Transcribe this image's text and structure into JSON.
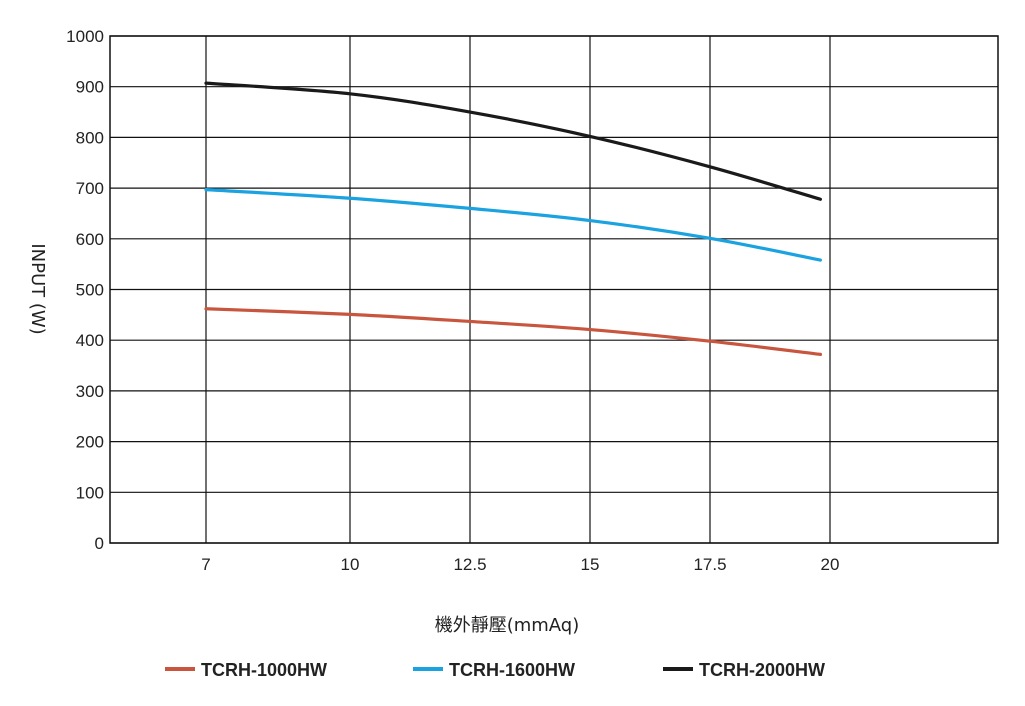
{
  "chart_data": {
    "type": "line",
    "xlabel": "機外靜壓(mmAq)",
    "ylabel": "INPUT (W)",
    "xlim": [
      5,
      23.5
    ],
    "ylim": [
      0,
      1000
    ],
    "x_ticks": [
      "7",
      "10",
      "12.5",
      "15",
      "17.5",
      "20"
    ],
    "x_tick_values": [
      7,
      10,
      12.5,
      15,
      17.5,
      20
    ],
    "y_ticks": [
      "0",
      "100",
      "200",
      "300",
      "400",
      "500",
      "600",
      "700",
      "800",
      "900",
      "1000"
    ],
    "y_tick_values": [
      0,
      100,
      200,
      300,
      400,
      500,
      600,
      700,
      800,
      900,
      1000
    ],
    "grid": true,
    "legend_position": "bottom",
    "series": [
      {
        "name": "TCRH-1000HW",
        "color": "#c8553d",
        "x": [
          7,
          10,
          12.5,
          15,
          17.5,
          19.8
        ],
        "y": [
          462,
          451,
          437,
          421,
          398,
          372
        ]
      },
      {
        "name": "TCRH-1600HW",
        "color": "#1aa3e0",
        "x": [
          7,
          10,
          12.5,
          15,
          17.5,
          19.8
        ],
        "y": [
          697,
          680,
          660,
          636,
          601,
          558
        ]
      },
      {
        "name": "TCRH-2000HW",
        "color": "#1a1a1a",
        "x": [
          7,
          10,
          12.5,
          15,
          17.5,
          19.8
        ],
        "y": [
          907,
          886,
          850,
          802,
          742,
          678
        ]
      }
    ]
  }
}
